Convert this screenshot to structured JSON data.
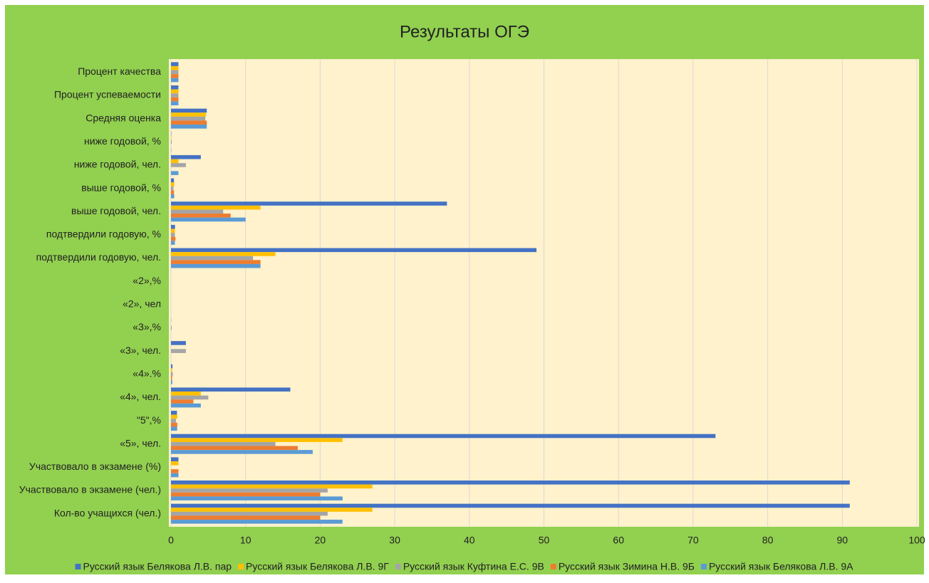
{
  "chart_data": {
    "type": "bar",
    "orientation": "horizontal",
    "title": "Результаты ОГЭ",
    "categories": [
      "Кол-во учащихся (чел.)",
      "Участвовало в экзамене (чел.)",
      "Участвовало в экзамене (%)",
      "«5», чел.",
      "\"5\",%",
      "«4», чел.",
      "«4».%",
      "«3», чел.",
      "«3»,%",
      "«2», чел",
      "«2»,%",
      "подтвердили годовую, чел.",
      "подтвердили годовую, %",
      "выше годовой, чел.",
      "выше годовой, %",
      "ниже годовой, чел.",
      "ниже годовой, %",
      "Средняя оценка",
      "Процент успеваемости",
      "Процент качества"
    ],
    "series": [
      {
        "name": "Русский язык Белякова Л.В. пар",
        "color": "#4472c4",
        "values": [
          91,
          91,
          1,
          73,
          0.8,
          16,
          0.2,
          2,
          0.02,
          0,
          0,
          49,
          0.54,
          37,
          0.4,
          4,
          0.04,
          4.8,
          1,
          1
        ]
      },
      {
        "name": "Русский язык Белякова Л.В. 9Г",
        "color": "#ffc000",
        "values": [
          27,
          27,
          1,
          23,
          0.85,
          4,
          0.15,
          0,
          0,
          0,
          0,
          14,
          0.52,
          12,
          0.44,
          1,
          0.04,
          4.7,
          1,
          1
        ]
      },
      {
        "name": "Русский язык Куфтина Е.С. 9В",
        "color": "#a5a5a5",
        "values": [
          21,
          21,
          0,
          14,
          0.67,
          5,
          0.24,
          2,
          0.1,
          0,
          0,
          11,
          0.52,
          7,
          0.33,
          2,
          0.1,
          4.6,
          1,
          1
        ]
      },
      {
        "name": "Русский язык Зимина Н.В. 9Б",
        "color": "#ed7d31",
        "values": [
          20,
          20,
          1,
          17,
          0.85,
          3,
          0.15,
          0,
          0,
          0,
          0,
          12,
          0.6,
          8,
          0.4,
          0,
          0,
          4.8,
          1,
          1
        ]
      },
      {
        "name": "Русский язык Белякова Л.В. 9А",
        "color": "#5b9bd5",
        "values": [
          23,
          23,
          1,
          19,
          0.83,
          4,
          0.17,
          0,
          0,
          0,
          0,
          12,
          0.52,
          10,
          0.43,
          1,
          0.04,
          4.8,
          1,
          1
        ]
      }
    ],
    "xlim": [
      0,
      100
    ],
    "xticks": [
      0,
      10,
      20,
      30,
      40,
      50,
      60,
      70,
      80,
      90,
      100
    ],
    "grid": true,
    "legend": "bottom"
  }
}
